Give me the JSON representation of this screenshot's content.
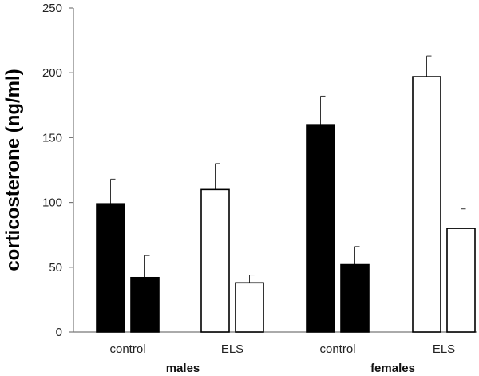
{
  "chart_data": {
    "type": "bar",
    "title": "",
    "xlabel": "",
    "ylabel": "corticosterone (ng/ml)",
    "ylim": [
      0,
      250
    ],
    "yticks": [
      "0",
      "50",
      "100",
      "150",
      "200",
      "250"
    ],
    "groups": [
      {
        "label": "control",
        "sex": "males",
        "fill": "#000000",
        "bars": [
          {
            "value": 99,
            "error": 19
          },
          {
            "value": 42,
            "error": 17
          }
        ]
      },
      {
        "label": "ELS",
        "sex": "males",
        "fill": "#ffffff",
        "bars": [
          {
            "value": 110,
            "error": 20
          },
          {
            "value": 38,
            "error": 6
          }
        ]
      },
      {
        "label": "control",
        "sex": "females",
        "fill": "#000000",
        "bars": [
          {
            "value": 160,
            "error": 22
          },
          {
            "value": 52,
            "error": 14
          }
        ]
      },
      {
        "label": "ELS",
        "sex": "females",
        "fill": "#ffffff",
        "bars": [
          {
            "value": 197,
            "error": 16
          },
          {
            "value": 80,
            "error": 15
          }
        ]
      }
    ],
    "sex_labels": [
      "males",
      "females"
    ]
  }
}
